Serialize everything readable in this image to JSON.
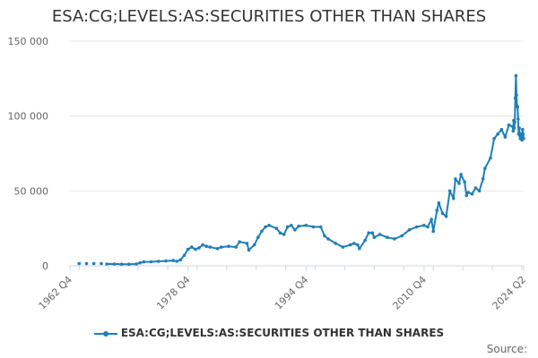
{
  "chart_data": {
    "type": "line",
    "title": "ESA:CG;LEVELS:AS:SECURITIES OTHER THAN SHARES",
    "xlabel": "",
    "ylabel": "",
    "x_tick_labels": [
      "1962 Q4",
      "1978 Q4",
      "1994 Q4",
      "2010 Q4",
      "2024 Q2"
    ],
    "y_tick_labels": [
      "0",
      "50 000",
      "100 000",
      "150 000"
    ],
    "y_ticks": [
      0,
      50000,
      100000,
      150000
    ],
    "ylim": [
      0,
      150000
    ],
    "x_range": [
      "1962 Q4",
      "2024 Q2"
    ],
    "grid": "horizontal",
    "legend_position": "bottom",
    "series": [
      {
        "name": "ESA:CG;LEVELS:AS:SECURITIES OTHER THAN SHARES",
        "color": "#1f7fb9",
        "points": [
          [
            "1964 Q1",
            1500
          ],
          [
            "1965 Q1",
            1500
          ],
          [
            "1966 Q1",
            1500
          ],
          [
            "1967 Q1",
            1500
          ],
          [
            "1967 Q4",
            1200
          ],
          [
            "1968 Q4",
            1200
          ],
          [
            "1969 Q4",
            1100
          ],
          [
            "1970 Q4",
            1100
          ],
          [
            "1971 Q4",
            1200
          ],
          [
            "1972 Q2",
            2000
          ],
          [
            "1972 Q4",
            2600
          ],
          [
            "1973 Q4",
            2700
          ],
          [
            "1974 Q4",
            3000
          ],
          [
            "1975 Q4",
            3200
          ],
          [
            "1976 Q4",
            3500
          ],
          [
            "1977 Q2",
            3000
          ],
          [
            "1977 Q4",
            4000
          ],
          [
            "1978 Q2",
            7000
          ],
          [
            "1978 Q4",
            11000
          ],
          [
            "1979 Q2",
            12500
          ],
          [
            "1979 Q4",
            11000
          ],
          [
            "1980 Q2",
            12000
          ],
          [
            "1980 Q4",
            14000
          ],
          [
            "1981 Q2",
            13000
          ],
          [
            "1981 Q4",
            12500
          ],
          [
            "1982 Q4",
            11500
          ],
          [
            "1983 Q2",
            12500
          ],
          [
            "1984 Q2",
            13000
          ],
          [
            "1985 Q2",
            12500
          ],
          [
            "1985 Q4",
            16000
          ],
          [
            "1986 Q4",
            15000
          ],
          [
            "1987 Q1",
            10500
          ],
          [
            "1987 Q4",
            14000
          ],
          [
            "1988 Q2",
            19000
          ],
          [
            "1988 Q4",
            23000
          ],
          [
            "1989 Q2",
            26000
          ],
          [
            "1989 Q4",
            27000
          ],
          [
            "1990 Q4",
            25000
          ],
          [
            "1991 Q2",
            22000
          ],
          [
            "1991 Q4",
            21000
          ],
          [
            "1992 Q2",
            26000
          ],
          [
            "1992 Q4",
            27000
          ],
          [
            "1993 Q2",
            24000
          ],
          [
            "1993 Q4",
            26500
          ],
          [
            "1994 Q4",
            27000
          ],
          [
            "1995 Q4",
            26000
          ],
          [
            "1996 Q4",
            26000
          ],
          [
            "1997 Q2",
            20000
          ],
          [
            "1997 Q4",
            18000
          ],
          [
            "1998 Q4",
            15000
          ],
          [
            "1999 Q4",
            12500
          ],
          [
            "2000 Q4",
            14000
          ],
          [
            "2001 Q2",
            15000
          ],
          [
            "2001 Q4",
            14000
          ],
          [
            "2002 Q1",
            11500
          ],
          [
            "2002 Q4",
            17000
          ],
          [
            "2003 Q2",
            22000
          ],
          [
            "2003 Q4",
            22000
          ],
          [
            "2004 Q1",
            19000
          ],
          [
            "2004 Q4",
            21000
          ],
          [
            "2005 Q4",
            19000
          ],
          [
            "2006 Q4",
            18000
          ],
          [
            "2007 Q4",
            20000
          ],
          [
            "2008 Q4",
            24000
          ],
          [
            "2009 Q4",
            26000
          ],
          [
            "2010 Q4",
            27000
          ],
          [
            "2011 Q2",
            26000
          ],
          [
            "2011 Q4",
            31000
          ],
          [
            "2012 Q1",
            23000
          ],
          [
            "2012 Q3",
            37000
          ],
          [
            "2012 Q4",
            42000
          ],
          [
            "2013 Q2",
            35000
          ],
          [
            "2013 Q4",
            33000
          ],
          [
            "2014 Q2",
            50000
          ],
          [
            "2014 Q4",
            45000
          ],
          [
            "2015 Q1",
            58000
          ],
          [
            "2015 Q3",
            55000
          ],
          [
            "2015 Q4",
            61000
          ],
          [
            "2016 Q2",
            56000
          ],
          [
            "2016 Q3",
            47000
          ],
          [
            "2016 Q4",
            49000
          ],
          [
            "2017 Q2",
            48000
          ],
          [
            "2017 Q4",
            52000
          ],
          [
            "2018 Q2",
            50000
          ],
          [
            "2018 Q4",
            58000
          ],
          [
            "2019 Q1",
            65000
          ],
          [
            "2019 Q4",
            72000
          ],
          [
            "2020 Q2",
            85000
          ],
          [
            "2020 Q4",
            88000
          ],
          [
            "2021 Q2",
            91000
          ],
          [
            "2021 Q4",
            86000
          ],
          [
            "2022 Q2",
            94000
          ],
          [
            "2022 Q4",
            93000
          ],
          [
            "2023 Q1",
            90000
          ],
          [
            "2023 Q2",
            97000
          ],
          [
            "2023 Q3",
            92000
          ],
          [
            "2023 Q4",
            96000
          ],
          [
            "2024 Q1",
            112000
          ],
          [
            "2024 Q2",
            127000
          ]
        ],
        "tail_points": [
          [
            "2024 Q3",
            114000
          ],
          [
            "2024 Q4",
            107000
          ],
          [
            "2025 Q1",
            106000
          ],
          [
            "2025 Q2",
            98000
          ],
          [
            "2025 Q3",
            88000
          ],
          [
            "2025 Q4",
            92000
          ],
          [
            "2026 Q1",
            87000
          ],
          [
            "2026 Q2",
            85000
          ],
          [
            "2026 Q3",
            88000
          ],
          [
            "2026 Q4",
            86000
          ],
          [
            "2027 Q1",
            84000
          ],
          [
            "2027 Q2",
            91000
          ],
          [
            "2027 Q3",
            88000
          ],
          [
            "2027 Q4",
            85000
          ]
        ]
      }
    ]
  },
  "source_label": "Source:"
}
